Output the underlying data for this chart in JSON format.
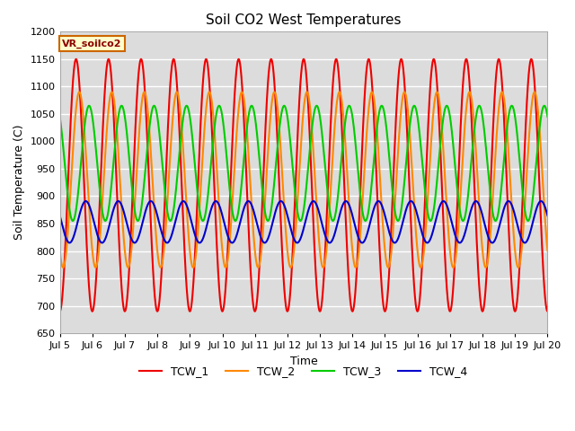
{
  "title": "Soil CO2 West Temperatures",
  "xlabel": "Time",
  "ylabel": "Soil Temperature (C)",
  "ylim": [
    650,
    1200
  ],
  "xlim_days": [
    0,
    15
  ],
  "annotation_label": "VR_soilco2",
  "plot_bg_color": "#dcdcdc",
  "fig_bg_color": "#ffffff",
  "grid_color": "#ffffff",
  "series": {
    "TCW_1": {
      "color": "#ee0000",
      "amplitude": 230,
      "mean": 920,
      "phase_days": 0.25,
      "period": 1.0
    },
    "TCW_2": {
      "color": "#ff8800",
      "amplitude": 160,
      "mean": 930,
      "phase_days": 0.35,
      "period": 1.0
    },
    "TCW_3": {
      "color": "#00cc00",
      "amplitude": 105,
      "mean": 960,
      "phase_days": 0.65,
      "period": 1.0
    },
    "TCW_4": {
      "color": "#0000cc",
      "amplitude": 38,
      "mean": 853,
      "phase_days": 0.55,
      "period": 1.0
    }
  },
  "xtick_positions": [
    0,
    1,
    2,
    3,
    4,
    5,
    6,
    7,
    8,
    9,
    10,
    11,
    12,
    13,
    14,
    15
  ],
  "xtick_labels": [
    "Jul 5",
    "Jul 6",
    "Jul 7",
    "Jul 8",
    "Jul 9",
    "Jul 10",
    "Jul 11",
    "Jul 12",
    "Jul 13",
    "Jul 14",
    "Jul 15",
    "Jul 16",
    "Jul 17",
    "Jul 18",
    "Jul 19",
    "Jul 20"
  ],
  "ytick_positions": [
    650,
    700,
    750,
    800,
    850,
    900,
    950,
    1000,
    1050,
    1100,
    1150,
    1200
  ],
  "legend_order": [
    "TCW_1",
    "TCW_2",
    "TCW_3",
    "TCW_4"
  ],
  "figsize": [
    6.4,
    4.8
  ],
  "dpi": 100
}
